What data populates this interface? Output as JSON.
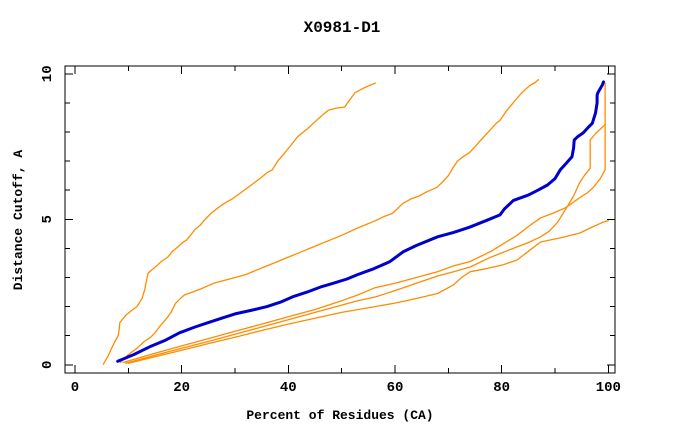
{
  "title": "X0981-D1",
  "chart_data": {
    "type": "line",
    "title": "X0981-D1",
    "xlabel": "Percent of Residues (CA)",
    "ylabel": "Distance Cutoff, A",
    "xlim": [
      0,
      100
    ],
    "ylim": [
      0,
      10
    ],
    "grid": false,
    "legend": "none",
    "x_ticks_major": [
      0,
      20,
      40,
      60,
      80,
      100
    ],
    "x_ticks_minor": [
      10,
      30,
      50,
      70,
      90
    ],
    "y_ticks_major": [
      0,
      5,
      10
    ],
    "y_ticks_minor": [
      1,
      2,
      3,
      4,
      6,
      7,
      8,
      9
    ],
    "colors": {
      "highlight": "#0000cd",
      "other": "#ff8c00",
      "frame": "#000000",
      "background": "#ffffff"
    },
    "series": [
      {
        "id": "orange-model-1",
        "color": "other",
        "width": 1.3,
        "points": [
          [
            5.3,
            0.02
          ],
          [
            6.2,
            0.3
          ],
          [
            6.8,
            0.55
          ],
          [
            7.5,
            0.8
          ],
          [
            8.1,
            1.0
          ],
          [
            8.3,
            1.25
          ],
          [
            8.4,
            1.45
          ],
          [
            9.5,
            1.7
          ],
          [
            10.5,
            1.85
          ],
          [
            11.6,
            2.0
          ],
          [
            12.3,
            2.2
          ],
          [
            12.6,
            2.3
          ],
          [
            13.1,
            2.6
          ],
          [
            13.4,
            2.9
          ],
          [
            13.7,
            3.15
          ],
          [
            15.0,
            3.35
          ],
          [
            16.2,
            3.55
          ],
          [
            17.4,
            3.7
          ],
          [
            18.3,
            3.9
          ],
          [
            19.3,
            4.05
          ],
          [
            20.2,
            4.2
          ],
          [
            21.0,
            4.3
          ],
          [
            22.5,
            4.65
          ],
          [
            23.5,
            4.8
          ],
          [
            24.4,
            5.0
          ],
          [
            25.5,
            5.2
          ],
          [
            26.5,
            5.35
          ],
          [
            28.0,
            5.55
          ],
          [
            29.5,
            5.7
          ],
          [
            31.0,
            5.9
          ],
          [
            33.2,
            6.2
          ],
          [
            35.0,
            6.45
          ],
          [
            36.0,
            6.6
          ],
          [
            37.0,
            6.7
          ],
          [
            38.0,
            7.0
          ],
          [
            39.4,
            7.3
          ],
          [
            40.5,
            7.55
          ],
          [
            41.8,
            7.85
          ],
          [
            43.5,
            8.1
          ],
          [
            45.0,
            8.35
          ],
          [
            46.2,
            8.55
          ],
          [
            47.5,
            8.75
          ],
          [
            49.0,
            8.82
          ],
          [
            50.6,
            8.86
          ],
          [
            51.5,
            9.1
          ],
          [
            52.5,
            9.35
          ],
          [
            54.0,
            9.5
          ],
          [
            55.0,
            9.58
          ],
          [
            56.3,
            9.68
          ]
        ]
      },
      {
        "id": "orange-model-2",
        "color": "other",
        "width": 1.3,
        "points": [
          [
            8.5,
            0.08
          ],
          [
            10,
            0.35
          ],
          [
            11.5,
            0.55
          ],
          [
            13,
            0.8
          ],
          [
            14.2,
            0.95
          ],
          [
            15,
            1.1
          ],
          [
            15.8,
            1.3
          ],
          [
            16.5,
            1.45
          ],
          [
            17.2,
            1.6
          ],
          [
            18,
            1.8
          ],
          [
            18.8,
            2.1
          ],
          [
            19.6,
            2.25
          ],
          [
            20.5,
            2.4
          ],
          [
            22,
            2.5
          ],
          [
            23.5,
            2.6
          ],
          [
            26,
            2.8
          ],
          [
            28,
            2.9
          ],
          [
            30,
            3.0
          ],
          [
            32,
            3.1
          ],
          [
            34,
            3.25
          ],
          [
            36,
            3.4
          ],
          [
            38,
            3.55
          ],
          [
            40,
            3.7
          ],
          [
            42,
            3.85
          ],
          [
            44,
            4.0
          ],
          [
            46,
            4.15
          ],
          [
            48,
            4.3
          ],
          [
            50,
            4.45
          ],
          [
            53,
            4.7
          ],
          [
            56.3,
            4.95
          ],
          [
            58,
            5.1
          ],
          [
            59.5,
            5.2
          ],
          [
            61.5,
            5.55
          ],
          [
            63,
            5.7
          ],
          [
            64.5,
            5.8
          ],
          [
            66,
            5.95
          ],
          [
            67.9,
            6.1
          ],
          [
            69,
            6.3
          ],
          [
            70,
            6.5
          ],
          [
            70.8,
            6.75
          ],
          [
            71.7,
            7.0
          ],
          [
            72.8,
            7.15
          ],
          [
            74,
            7.3
          ],
          [
            74.8,
            7.45
          ],
          [
            76,
            7.7
          ],
          [
            77,
            7.9
          ],
          [
            78,
            8.1
          ],
          [
            79,
            8.3
          ],
          [
            79.7,
            8.4
          ],
          [
            80.8,
            8.7
          ],
          [
            81.7,
            8.9
          ],
          [
            82.6,
            9.1
          ],
          [
            83.8,
            9.35
          ],
          [
            85.3,
            9.6
          ],
          [
            86.3,
            9.7
          ],
          [
            86.9,
            9.8
          ]
        ]
      },
      {
        "id": "orange-model-3",
        "color": "other",
        "width": 1.3,
        "points": [
          [
            9.5,
            0.05
          ],
          [
            15,
            0.33
          ],
          [
            20,
            0.57
          ],
          [
            25,
            0.8
          ],
          [
            30,
            1.05
          ],
          [
            35,
            1.3
          ],
          [
            40,
            1.55
          ],
          [
            45,
            1.8
          ],
          [
            50,
            2.05
          ],
          [
            53,
            2.2
          ],
          [
            56.3,
            2.33
          ],
          [
            60,
            2.55
          ],
          [
            64,
            2.8
          ],
          [
            68,
            3.05
          ],
          [
            71,
            3.2
          ],
          [
            74.1,
            3.36
          ],
          [
            78,
            3.7
          ],
          [
            82.9,
            4.05
          ],
          [
            85,
            4.2
          ],
          [
            87.3,
            4.4
          ],
          [
            89,
            4.6
          ],
          [
            90.5,
            4.9
          ],
          [
            91.5,
            5.2
          ],
          [
            92.5,
            5.5
          ],
          [
            93.5,
            5.8
          ],
          [
            94.6,
            6.25
          ],
          [
            95.5,
            6.5
          ],
          [
            96.6,
            6.76
          ],
          [
            96.6,
            7.72
          ],
          [
            97.6,
            7.95
          ],
          [
            98.5,
            8.1
          ],
          [
            99.4,
            8.25
          ],
          [
            99.4,
            9.68
          ]
        ]
      },
      {
        "id": "orange-model-4",
        "color": "other",
        "width": 1.3,
        "points": [
          [
            9,
            0.08
          ],
          [
            15,
            0.4
          ],
          [
            20,
            0.65
          ],
          [
            25,
            0.9
          ],
          [
            30,
            1.15
          ],
          [
            35,
            1.4
          ],
          [
            40,
            1.65
          ],
          [
            45,
            1.9
          ],
          [
            50,
            2.2
          ],
          [
            53,
            2.4
          ],
          [
            56.3,
            2.65
          ],
          [
            60,
            2.8
          ],
          [
            64,
            3.0
          ],
          [
            68,
            3.2
          ],
          [
            71,
            3.4
          ],
          [
            74.1,
            3.55
          ],
          [
            78,
            3.9
          ],
          [
            82.9,
            4.45
          ],
          [
            85,
            4.75
          ],
          [
            87.3,
            5.05
          ],
          [
            89.5,
            5.2
          ],
          [
            92,
            5.4
          ],
          [
            94.7,
            5.75
          ],
          [
            96,
            5.9
          ],
          [
            97.2,
            6.1
          ],
          [
            98.5,
            6.4
          ],
          [
            99.4,
            6.7
          ],
          [
            99.4,
            8.3
          ]
        ]
      },
      {
        "id": "orange-model-5",
        "color": "other",
        "width": 1.3,
        "points": [
          [
            10,
            0.05
          ],
          [
            15,
            0.28
          ],
          [
            20,
            0.5
          ],
          [
            25,
            0.73
          ],
          [
            30,
            0.95
          ],
          [
            35,
            1.18
          ],
          [
            40,
            1.4
          ],
          [
            45,
            1.6
          ],
          [
            50,
            1.8
          ],
          [
            56.3,
            2.0
          ],
          [
            60,
            2.12
          ],
          [
            64,
            2.28
          ],
          [
            68,
            2.45
          ],
          [
            71,
            2.75
          ],
          [
            72.5,
            3.0
          ],
          [
            74.1,
            3.2
          ],
          [
            77,
            3.3
          ],
          [
            80,
            3.42
          ],
          [
            82.9,
            3.6
          ],
          [
            85,
            3.9
          ],
          [
            87.3,
            4.22
          ],
          [
            91,
            4.36
          ],
          [
            94.7,
            4.53
          ],
          [
            96.6,
            4.7
          ],
          [
            99,
            4.9
          ],
          [
            100,
            4.95
          ]
        ]
      },
      {
        "id": "blue-model-highlighted",
        "color": "highlight",
        "width": 3,
        "points": [
          [
            8,
            0.12
          ],
          [
            11,
            0.35
          ],
          [
            14,
            0.62
          ],
          [
            17,
            0.85
          ],
          [
            19.6,
            1.1
          ],
          [
            22.5,
            1.3
          ],
          [
            25,
            1.45
          ],
          [
            27.5,
            1.6
          ],
          [
            30,
            1.75
          ],
          [
            33,
            1.87
          ],
          [
            36,
            2.0
          ],
          [
            38.5,
            2.15
          ],
          [
            41,
            2.35
          ],
          [
            43.5,
            2.5
          ],
          [
            46,
            2.67
          ],
          [
            48.4,
            2.8
          ],
          [
            51,
            2.95
          ],
          [
            53,
            3.1
          ],
          [
            56,
            3.3
          ],
          [
            59,
            3.54
          ],
          [
            61.5,
            3.88
          ],
          [
            64,
            4.1
          ],
          [
            68,
            4.4
          ],
          [
            71,
            4.55
          ],
          [
            74,
            4.73
          ],
          [
            77,
            4.95
          ],
          [
            79.7,
            5.15
          ],
          [
            80.5,
            5.35
          ],
          [
            82.2,
            5.65
          ],
          [
            85,
            5.83
          ],
          [
            86.8,
            6.0
          ],
          [
            88.6,
            6.18
          ],
          [
            90,
            6.4
          ],
          [
            91,
            6.7
          ],
          [
            92,
            6.9
          ],
          [
            93.2,
            7.15
          ],
          [
            93.5,
            7.45
          ],
          [
            93.6,
            7.72
          ],
          [
            94.2,
            7.83
          ],
          [
            95.3,
            7.97
          ],
          [
            96.2,
            8.15
          ],
          [
            97,
            8.3
          ],
          [
            97.6,
            8.65
          ],
          [
            97.9,
            9.0
          ],
          [
            97.9,
            9.27
          ],
          [
            98.1,
            9.37
          ],
          [
            98.9,
            9.62
          ],
          [
            99.1,
            9.72
          ]
        ]
      }
    ]
  }
}
